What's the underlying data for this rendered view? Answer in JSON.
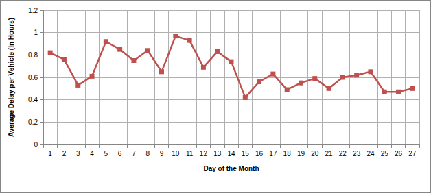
{
  "chart_data": {
    "type": "line",
    "x_label": "Day of the Month",
    "y_label": "Average Delay per Vehicle (In Hours)",
    "categories": [
      "1",
      "2",
      "3",
      "4",
      "5",
      "6",
      "7",
      "8",
      "9",
      "10",
      "11",
      "12",
      "13",
      "14",
      "15",
      "16",
      "17",
      "18",
      "19",
      "20",
      "21",
      "22",
      "23",
      "24",
      "25",
      "26",
      "27"
    ],
    "values": [
      0.82,
      0.76,
      0.53,
      0.61,
      0.92,
      0.85,
      0.75,
      0.84,
      0.65,
      0.97,
      0.93,
      0.69,
      0.83,
      0.74,
      0.42,
      0.56,
      0.63,
      0.49,
      0.55,
      0.59,
      0.5,
      0.6,
      0.62,
      0.65,
      0.47,
      0.47,
      0.5
    ],
    "color": "#c0504d",
    "marker": "square",
    "line_style": "solid",
    "ylim": [
      0,
      1.2
    ],
    "yticks": [
      0,
      0.2,
      0.4,
      0.6,
      0.8,
      1,
      1.2
    ],
    "grid": true
  }
}
